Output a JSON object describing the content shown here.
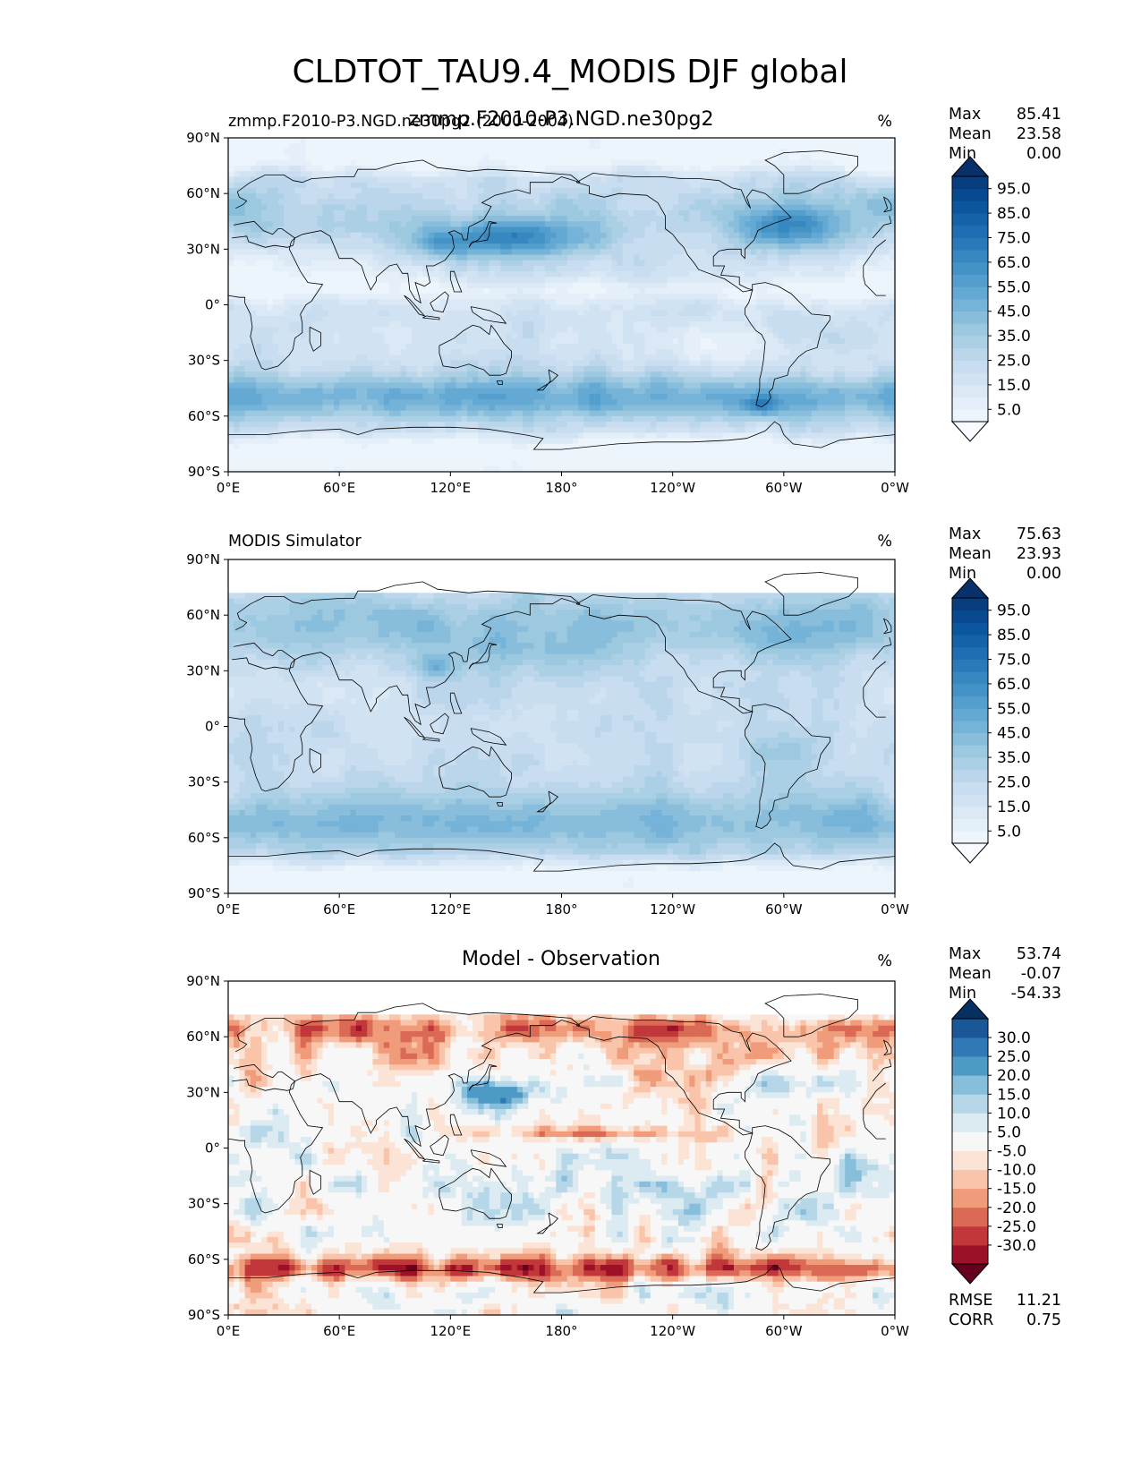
{
  "figure_title": "CLDTOT_TAU9.4_MODIS DJF global",
  "chart_data": [
    {
      "type": "heatmap",
      "left_title": "zmmp.F2010-P3.NGD.ne30pg2 (2000-2004)",
      "center_title": "zmmp.F2010-P3.NGD.ne30pg2",
      "units": "%",
      "projection": "PlateCarree (0°E to 360°)",
      "xticks": [
        "0°E",
        "60°E",
        "120°E",
        "180°",
        "120°W",
        "60°W",
        "0°W"
      ],
      "yticks": [
        "90°N",
        "60°N",
        "30°N",
        "0°",
        "30°S",
        "60°S",
        "90°S"
      ],
      "xlim": [
        0,
        360
      ],
      "ylim": [
        -90,
        90
      ],
      "stats": {
        "labels": [
          "Max",
          "Mean",
          "Min"
        ],
        "values": [
          "85.41",
          "23.58",
          "0.00"
        ]
      },
      "colorbar": {
        "cmap": "Blues",
        "levels": [
          0,
          5,
          10,
          15,
          20,
          25,
          30,
          35,
          40,
          45,
          50,
          55,
          60,
          65,
          70,
          75,
          80,
          85,
          90,
          95,
          100
        ],
        "tick_labels": [
          "95.0",
          "85.0",
          "75.0",
          "65.0",
          "55.0",
          "45.0",
          "35.0",
          "25.0",
          "15.0",
          "5.0"
        ],
        "extend": "both"
      },
      "features": {
        "storm_track_nh_pacific": "high (55-75%) near 30-45°N, 125-190°E",
        "storm_track_nh_atlantic": "high (55-75%) near 35-50°N, 290-330°E",
        "southern_ocean_belt": "high (45-65%) 40-60°S all longitudes",
        "polar_regions": "low (0-10%)",
        "subtropical_oceans": "moderate (15-30%)"
      }
    },
    {
      "type": "heatmap",
      "left_title": "MODIS Simulator",
      "units": "%",
      "xticks": [
        "0°E",
        "60°E",
        "120°E",
        "180°",
        "120°W",
        "60°W",
        "0°W"
      ],
      "yticks": [
        "90°N",
        "60°N",
        "30°N",
        "0°",
        "30°S",
        "60°S",
        "90°S"
      ],
      "xlim": [
        0,
        360
      ],
      "ylim": [
        -90,
        90
      ],
      "stats": {
        "labels": [
          "Max",
          "Mean",
          "Min"
        ],
        "values": [
          "75.63",
          "23.93",
          "0.00"
        ]
      },
      "colorbar": {
        "cmap": "Blues",
        "levels": [
          0,
          5,
          10,
          15,
          20,
          25,
          30,
          35,
          40,
          45,
          50,
          55,
          60,
          65,
          70,
          75,
          80,
          85,
          90,
          95,
          100
        ],
        "tick_labels": [
          "95.0",
          "85.0",
          "75.0",
          "65.0",
          "55.0",
          "45.0",
          "35.0",
          "25.0",
          "15.0",
          "5.0"
        ],
        "extend": "both"
      },
      "features": {
        "missing_data_north_of": 73,
        "nh_midlatitudes": "moderate-high (35-55%) 40-73°N",
        "southern_ocean_belt": "high (45-60%) 40-65°S",
        "tropics": "moderate (20-35%)"
      }
    },
    {
      "type": "heatmap",
      "center_title": "Model - Observation",
      "units": "%",
      "xticks": [
        "0°E",
        "60°E",
        "120°E",
        "180°",
        "120°W",
        "60°W",
        "0°W"
      ],
      "yticks": [
        "90°N",
        "60°N",
        "30°N",
        "0°",
        "30°S",
        "60°S",
        "90°S"
      ],
      "xlim": [
        0,
        360
      ],
      "ylim": [
        -90,
        90
      ],
      "stats": {
        "labels": [
          "Max",
          "Mean",
          "Min"
        ],
        "values": [
          "53.74",
          "-0.07",
          "-54.33"
        ]
      },
      "metrics": {
        "labels": [
          "RMSE",
          "CORR"
        ],
        "values": [
          "11.21",
          "0.75"
        ]
      },
      "colorbar": {
        "cmap": "RdBu",
        "levels": [
          -35,
          -30,
          -25,
          -20,
          -15,
          -10,
          -5,
          5,
          10,
          15,
          20,
          25,
          30,
          35
        ],
        "tick_labels": [
          "30.0",
          "25.0",
          "20.0",
          "15.0",
          "10.0",
          "5.0",
          "-5.0",
          "-10.0",
          "-15.0",
          "-20.0",
          "-25.0",
          "-30.0"
        ],
        "extend": "both"
      },
      "features": {
        "nh_high_latitudes": "negative (-10 to -35) 50-73°N",
        "southern_ocean_60_70S": "strongly negative (-25 to -40)",
        "nw_pacific_30N": "positive (+20 to +35) near 130-160°E",
        "itcz_band": "negative (-10 to -20) near 8°N, 150-250°E",
        "south_pacific": "positive (+10 to +25) 10-30°S"
      }
    }
  ]
}
